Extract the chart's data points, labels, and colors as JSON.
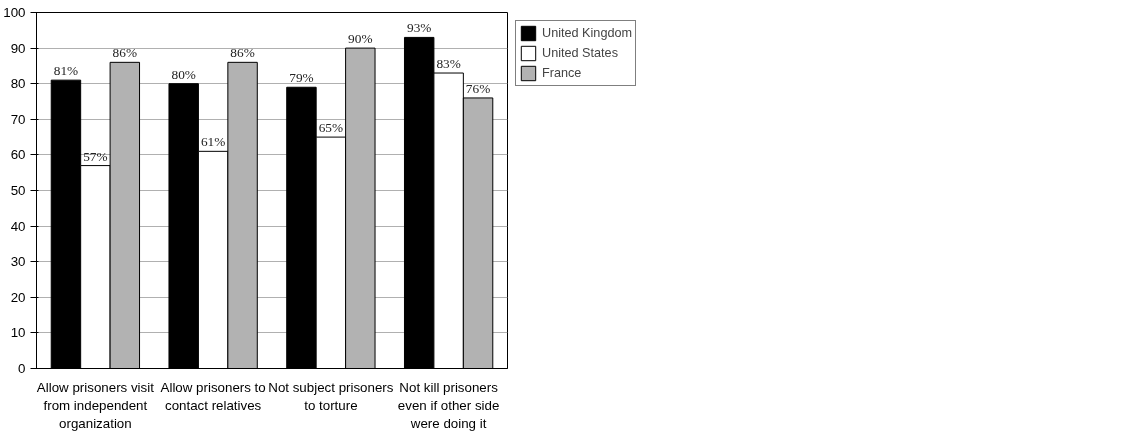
{
  "chart_data": {
    "type": "bar",
    "categories": [
      "Allow prisoners visit\nfrom independent\norganization",
      "Allow prisoners to\ncontact relatives",
      "Not subject prisoners\nto torture",
      "Not kill prisoners\neven if other side\nwere doing it"
    ],
    "series": [
      {
        "name": "United Kingdom",
        "color": "#000000",
        "values": [
          81,
          80,
          79,
          93
        ],
        "value_labels": [
          "81%",
          "80%",
          "79%",
          "93%"
        ]
      },
      {
        "name": "United States",
        "color": "#ffffff",
        "values": [
          57,
          61,
          65,
          83
        ],
        "value_labels": [
          "57%",
          "61%",
          "65%",
          "83%"
        ]
      },
      {
        "name": "France",
        "color": "#b2b2b2",
        "values": [
          86,
          86,
          90,
          76
        ],
        "value_labels": [
          "86%",
          "86%",
          "90%",
          "76%"
        ]
      }
    ],
    "ylim": [
      0,
      100
    ],
    "yticks": [
      0,
      10,
      20,
      30,
      40,
      50,
      60,
      70,
      80,
      90,
      100
    ],
    "grid": "y",
    "legend": "top right"
  }
}
